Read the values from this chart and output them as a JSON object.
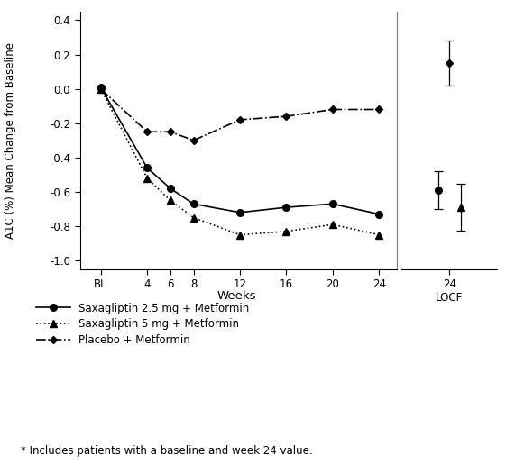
{
  "weeks_main": [
    0,
    4,
    6,
    8,
    12,
    16,
    20,
    24
  ],
  "saxa25_main": [
    0.01,
    -0.46,
    -0.58,
    -0.67,
    -0.72,
    -0.69,
    -0.67,
    -0.73
  ],
  "saxa5_main": [
    0.0,
    -0.52,
    -0.65,
    -0.75,
    -0.85,
    -0.83,
    -0.79,
    -0.85
  ],
  "placebo_main": [
    0.0,
    -0.25,
    -0.25,
    -0.3,
    -0.18,
    -0.16,
    -0.12,
    -0.12
  ],
  "saxa25_locf": -0.59,
  "saxa25_locf_err": 0.11,
  "saxa5_locf": -0.69,
  "saxa5_locf_err": 0.135,
  "placebo_locf": 0.15,
  "placebo_locf_err": 0.13,
  "ylim": [
    -1.05,
    0.45
  ],
  "yticks": [
    -1.0,
    -0.8,
    -0.6,
    -0.4,
    -0.2,
    0.0,
    0.2,
    0.4
  ],
  "xticks_main": [
    0,
    4,
    6,
    8,
    12,
    16,
    20,
    24
  ],
  "xlabels_main": [
    "BL",
    "4",
    "6",
    "8",
    "12",
    "16",
    "20",
    "24"
  ],
  "xlabel": "Weeks",
  "ylabel": "A1C (%) Mean Change from Baseline",
  "footnote": "* Includes patients with a baseline and week 24 value.",
  "legend_labels": [
    "Saxagliptin 2.5 mg + Metformin",
    "Saxagliptin 5 mg + Metformin",
    "Placebo + Metformin"
  ]
}
